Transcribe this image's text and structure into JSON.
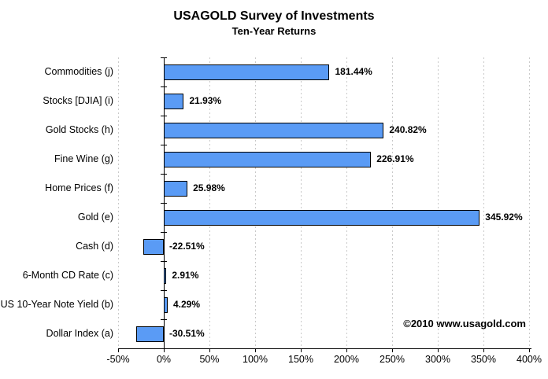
{
  "header": {
    "title": "USAGOLD Survey of Investments",
    "subtitle": "Ten-Year Returns"
  },
  "chart_data": {
    "type": "bar",
    "orientation": "horizontal",
    "title": "USAGOLD Survey of Investments",
    "subtitle": "Ten-Year Returns",
    "categories": [
      "Commodities (j)",
      "Stocks [DJIA] (i)",
      "Gold Stocks (h)",
      "Fine Wine (g)",
      "Home Prices (f)",
      "Gold (e)",
      "Cash (d)",
      "6-Month CD Rate (c)",
      "US 10-Year Note Yield (b)",
      "Dollar Index (a)"
    ],
    "values": [
      181.44,
      21.93,
      240.82,
      226.91,
      25.98,
      345.92,
      -22.51,
      2.91,
      4.29,
      -30.51
    ],
    "value_labels": [
      "181.44%",
      "21.93%",
      "240.82%",
      "226.91%",
      "25.98%",
      "345.92%",
      "-22.51%",
      "2.91%",
      "4.29%",
      "-30.51%"
    ],
    "xlabel": "",
    "ylabel": "",
    "xlim": [
      -50,
      400
    ],
    "tick_values": [
      -50,
      0,
      50,
      100,
      150,
      200,
      250,
      300,
      350,
      400
    ],
    "tick_labels": [
      "-50%",
      "0%",
      "50%",
      "100%",
      "150%",
      "200%",
      "250%",
      "300%",
      "350%",
      "400%"
    ],
    "grid": "vertical-dashed",
    "legend": "none",
    "colors": {
      "bar_fill": "#5A9BF5",
      "bar_border": "#000000",
      "grid_line": "#c9c9c9",
      "axis_line": "#000000",
      "text": "#000000"
    }
  },
  "annotations": {
    "copyright": "©2010 www.usagold.com"
  }
}
